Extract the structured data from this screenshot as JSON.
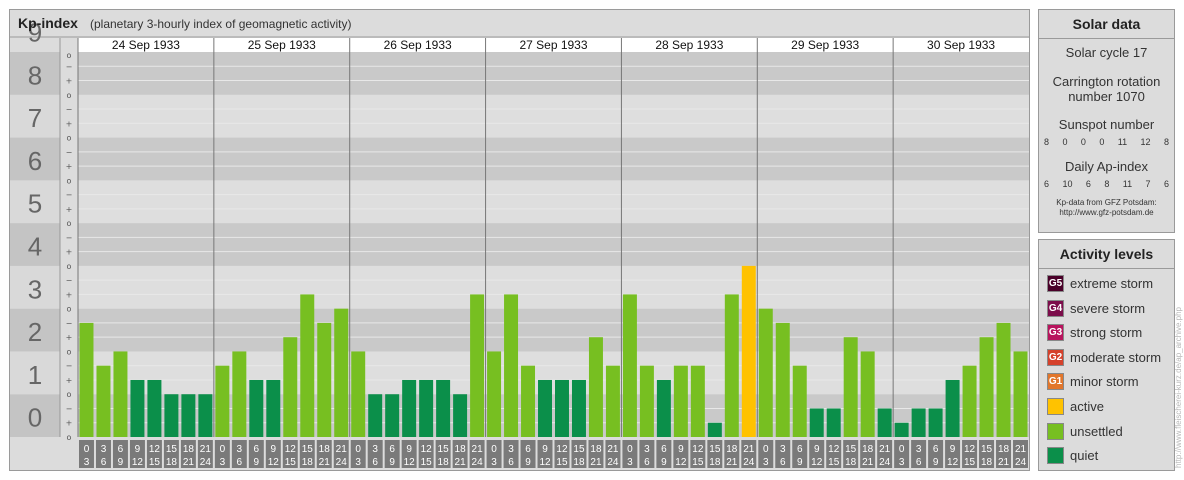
{
  "header": {
    "title": "Kp-index",
    "subtitle": "(planetary 3-hourly index of geomagnetic activity)"
  },
  "colors": {
    "quiet": "#0b8f4a",
    "unsettled": "#77bf21",
    "active": "#ffc200",
    "g1": "#e2762b",
    "g2": "#d5412b",
    "g3": "#b8135d",
    "g4": "#7c0d4b",
    "g5": "#4a0029"
  },
  "chart_data": {
    "type": "bar",
    "title": "Kp-index",
    "ylim": [
      0,
      9
    ],
    "y_ticks": [
      "0",
      "1",
      "2",
      "3",
      "4",
      "5",
      "6",
      "7",
      "8",
      "9"
    ],
    "sub_ticks": [
      "o",
      "+",
      "−"
    ],
    "days": [
      "24 Sep 1933",
      "25 Sep 1933",
      "26 Sep 1933",
      "27 Sep 1933",
      "28 Sep 1933",
      "29 Sep 1933",
      "30 Sep 1933"
    ],
    "hour_labels": [
      [
        "0",
        "3"
      ],
      [
        "3",
        "6"
      ],
      [
        "6",
        "9"
      ],
      [
        "9",
        "12"
      ],
      [
        "12",
        "15"
      ],
      [
        "15",
        "18"
      ],
      [
        "18",
        "21"
      ],
      [
        "21",
        "24"
      ]
    ],
    "values": [
      [
        2.667,
        1.667,
        2.0,
        1.333,
        1.333,
        1.0,
        1.0,
        1.0
      ],
      [
        1.667,
        2.0,
        1.333,
        1.333,
        2.333,
        3.333,
        2.667,
        3.0
      ],
      [
        2.0,
        1.0,
        1.0,
        1.333,
        1.333,
        1.333,
        1.0,
        3.333
      ],
      [
        2.0,
        3.333,
        1.667,
        1.333,
        1.333,
        1.333,
        2.333,
        1.667
      ],
      [
        3.333,
        1.667,
        1.333,
        1.667,
        1.667,
        0.333,
        3.333,
        4.0
      ],
      [
        3.0,
        2.667,
        1.667,
        0.667,
        0.667,
        2.333,
        2.0,
        0.667
      ],
      [
        0.333,
        0.667,
        0.667,
        1.333,
        1.667,
        2.333,
        2.667,
        2.0
      ]
    ]
  },
  "solar": {
    "title": "Solar data",
    "cycle": "Solar cycle 17",
    "carrington": "Carrington rotation number 1070",
    "sunspot_label": "Sunspot number",
    "sunspots": [
      "8",
      "0",
      "0",
      "0",
      "11",
      "12",
      "8"
    ],
    "ap_label": "Daily Ap-index",
    "ap": [
      "6",
      "10",
      "6",
      "8",
      "11",
      "7",
      "6"
    ],
    "credit_line1": "Kp-data from GFZ Potsdam:",
    "credit_line2": "http://www.gfz-potsdam.de"
  },
  "activity": {
    "title": "Activity levels",
    "items": [
      {
        "code": "G5",
        "label": "extreme storm",
        "color": "#4a0029"
      },
      {
        "code": "G4",
        "label": "severe storm",
        "color": "#7c0d4b"
      },
      {
        "code": "G3",
        "label": "strong storm",
        "color": "#b8135d"
      },
      {
        "code": "G2",
        "label": "moderate storm",
        "color": "#d5412b"
      },
      {
        "code": "G1",
        "label": "minor storm",
        "color": "#e2762b"
      },
      {
        "code": "",
        "label": "active",
        "color": "#ffc200"
      },
      {
        "code": "",
        "label": "unsettled",
        "color": "#77bf21"
      },
      {
        "code": "",
        "label": "quiet",
        "color": "#0b8f4a"
      }
    ]
  },
  "watermark": "http://www.fleischerei-kurz.de/ap_archive.php"
}
